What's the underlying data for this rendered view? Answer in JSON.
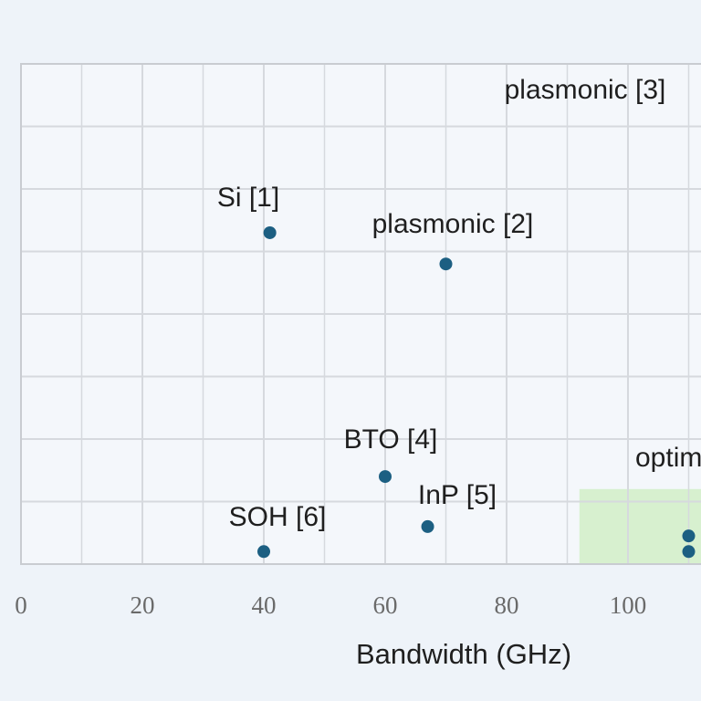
{
  "chart_data": {
    "type": "scatter",
    "title": "",
    "xlabel": "Bandwidth (GHz)",
    "ylabel": "",
    "xlim": [
      0,
      120
    ],
    "ylim": [
      0,
      8
    ],
    "x_ticks": [
      "0",
      "20",
      "40",
      "60",
      "80",
      "100"
    ],
    "grid": true,
    "highlight_region": {
      "x": [
        92,
        120
      ],
      "y": [
        0,
        1.2
      ],
      "color": "#d7f0cf",
      "label": "optim"
    },
    "colors": {
      "point": "#1c5f82",
      "grid": "#d6d9de",
      "frame": "#c9ccd1",
      "background": "#eef3f9",
      "plot_background": "#f4f7fb"
    },
    "points": [
      {
        "label": "Si [1]",
        "x": 41,
        "y": 5.3
      },
      {
        "label": "plasmonic [2]",
        "x": 70,
        "y": 4.8
      },
      {
        "label": "plasmonic [3]",
        "x": null,
        "y": null
      },
      {
        "label": "BTO [4]",
        "x": 60,
        "y": 1.4
      },
      {
        "label": "InP [5]",
        "x": 67,
        "y": 0.6
      },
      {
        "label": "SOH [6]",
        "x": 40,
        "y": 0.2
      },
      {
        "label": "",
        "x": 110,
        "y": 0.45
      },
      {
        "label": "",
        "x": 110,
        "y": 0.2
      }
    ]
  }
}
